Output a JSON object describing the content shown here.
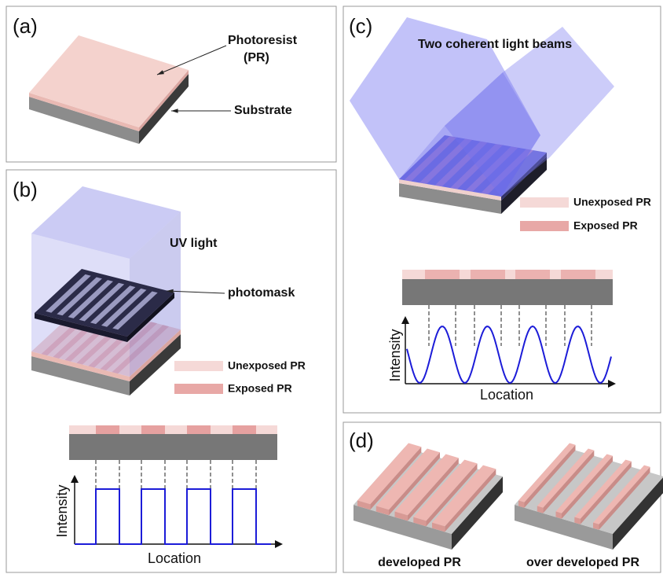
{
  "panels": {
    "a": {
      "label": "(a)",
      "photoresist": [
        "Photoresist",
        "(PR)"
      ],
      "substrate": "Substrate"
    },
    "b": {
      "label": "(b)",
      "uv_light": "UV light",
      "photomask": "photomask",
      "legend": [
        "Unexposed PR",
        "Exposed PR"
      ],
      "y_axis": "Intensity",
      "x_axis": "Location"
    },
    "c": {
      "label": "(c)",
      "beams": "Two coherent light beams",
      "legend": [
        "Unexposed PR",
        "Exposed PR"
      ],
      "y_axis": "Intensity",
      "x_axis": "Location"
    },
    "d": {
      "label": "(d)",
      "captions": [
        "developed PR",
        "over developed PR"
      ]
    }
  }
}
